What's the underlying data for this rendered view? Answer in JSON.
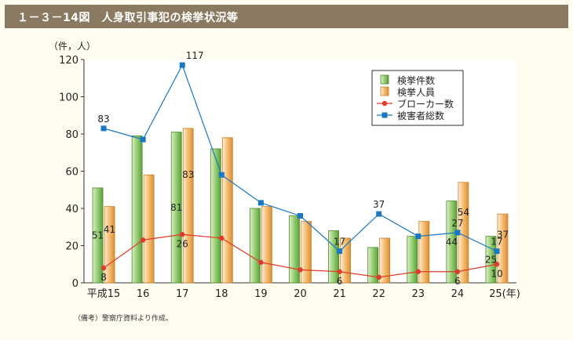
{
  "title": "１－３－14図　人身取引事犯の検挙状況等",
  "note": "（備考）警察庁資料より作成。",
  "colors": {
    "title_bg": "#8a7a62",
    "cases": "#9cd07a",
    "persons": "#f6c07a",
    "broker": "#e03a2a",
    "victims": "#1a78c2"
  },
  "chart_data": {
    "type": "bar",
    "unit_label": "（件，人）",
    "x_unit": "(年)",
    "categories": [
      "平成15",
      "16",
      "17",
      "18",
      "19",
      "20",
      "21",
      "22",
      "23",
      "24",
      "25"
    ],
    "ylim": [
      0,
      120
    ],
    "yticks": [
      0,
      20,
      40,
      60,
      80,
      100,
      120
    ],
    "legend_position": "top-right",
    "series": [
      {
        "name": "検挙件数",
        "kind": "bar",
        "values": [
          51,
          79,
          81,
          72,
          40,
          36,
          28,
          19,
          25,
          44,
          25
        ]
      },
      {
        "name": "検挙人員",
        "kind": "bar",
        "values": [
          41,
          58,
          83,
          78,
          41,
          33,
          24,
          24,
          33,
          54,
          37
        ]
      },
      {
        "name": "ブローカー数",
        "kind": "line",
        "values": [
          8,
          23,
          26,
          24,
          11,
          7,
          6,
          3,
          6,
          6,
          10
        ]
      },
      {
        "name": "被害者総数",
        "kind": "line",
        "values": [
          83,
          77,
          117,
          58,
          43,
          36,
          17,
          37,
          25,
          27,
          17
        ]
      }
    ],
    "data_labels": [
      {
        "series": "検挙件数",
        "index": 0,
        "text": "51"
      },
      {
        "series": "検挙人員",
        "index": 0,
        "text": "41"
      },
      {
        "series": "ブローカー数",
        "index": 0,
        "text": "8"
      },
      {
        "series": "被害者総数",
        "index": 0,
        "text": "83"
      },
      {
        "series": "検挙件数",
        "index": 2,
        "text": "81"
      },
      {
        "series": "検挙人員",
        "index": 2,
        "text": "83"
      },
      {
        "series": "ブローカー数",
        "index": 2,
        "text": "26"
      },
      {
        "series": "被害者総数",
        "index": 2,
        "text": "117"
      },
      {
        "series": "ブローカー数",
        "index": 6,
        "text": "6"
      },
      {
        "series": "被害者総数",
        "index": 6,
        "text": "17"
      },
      {
        "series": "被害者総数",
        "index": 7,
        "text": "37"
      },
      {
        "series": "検挙件数",
        "index": 9,
        "text": "44"
      },
      {
        "series": "検挙人員",
        "index": 9,
        "text": "54"
      },
      {
        "series": "ブローカー数",
        "index": 9,
        "text": "6"
      },
      {
        "series": "被害者総数",
        "index": 9,
        "text": "27"
      },
      {
        "series": "検挙件数",
        "index": 10,
        "text": "25"
      },
      {
        "series": "検挙人員",
        "index": 10,
        "text": "37"
      },
      {
        "series": "ブローカー数",
        "index": 10,
        "text": "10"
      },
      {
        "series": "被害者総数",
        "index": 10,
        "text": "17"
      }
    ]
  }
}
